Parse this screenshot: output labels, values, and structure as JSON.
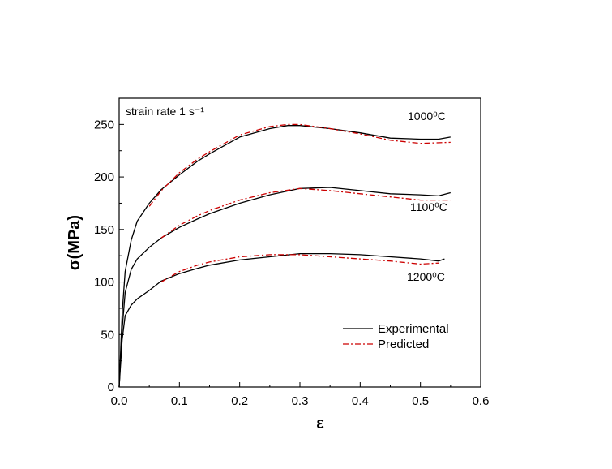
{
  "chart_data": {
    "type": "line",
    "xlabel": "ε",
    "ylabel": "σ(MPa)",
    "xlim": [
      0.0,
      0.6
    ],
    "ylim": [
      0,
      275
    ],
    "xticks": [
      "0.0",
      "0.1",
      "0.2",
      "0.3",
      "0.4",
      "0.5",
      "0.6"
    ],
    "yticks": [
      "0",
      "50",
      "100",
      "150",
      "200",
      "250"
    ],
    "grid": false,
    "legend_position": "bottom-right",
    "annotation": "strain rate 1 s⁻¹",
    "curve_labels": [
      {
        "text": "1000⁰C",
        "series": "1000"
      },
      {
        "text": "1100⁰C",
        "series": "1100"
      },
      {
        "text": "1200⁰C",
        "series": "1200"
      }
    ],
    "legend": [
      {
        "name": "Experimental",
        "color": "#000000",
        "style": "solid"
      },
      {
        "name": "Predicted",
        "color": "#cc0000",
        "style": "dash-dot"
      }
    ],
    "series": [
      {
        "name": "Experimental",
        "group": "1000",
        "color": "#000000",
        "x": [
          0.0,
          0.005,
          0.01,
          0.02,
          0.03,
          0.05,
          0.07,
          0.1,
          0.13,
          0.15,
          0.2,
          0.25,
          0.28,
          0.3,
          0.35,
          0.4,
          0.45,
          0.5,
          0.53,
          0.55
        ],
        "y": [
          0,
          70,
          110,
          140,
          158,
          175,
          188,
          202,
          215,
          222,
          238,
          246,
          249,
          249,
          246,
          242,
          237,
          236,
          236,
          238
        ]
      },
      {
        "name": "Predicted",
        "group": "1000",
        "color": "#cc0000",
        "x": [
          0.05,
          0.07,
          0.1,
          0.13,
          0.15,
          0.2,
          0.25,
          0.28,
          0.3,
          0.35,
          0.4,
          0.45,
          0.5,
          0.55
        ],
        "y": [
          172,
          187,
          204,
          217,
          224,
          240,
          248,
          250,
          250,
          246,
          241,
          235,
          232,
          233
        ]
      },
      {
        "name": "Experimental",
        "group": "1100",
        "color": "#000000",
        "x": [
          0.0,
          0.005,
          0.01,
          0.02,
          0.03,
          0.05,
          0.07,
          0.1,
          0.13,
          0.15,
          0.2,
          0.25,
          0.3,
          0.35,
          0.4,
          0.45,
          0.5,
          0.53,
          0.55
        ],
        "y": [
          0,
          55,
          90,
          112,
          122,
          133,
          142,
          152,
          160,
          165,
          175,
          183,
          189,
          190,
          187,
          184,
          183,
          182,
          185
        ]
      },
      {
        "name": "Predicted",
        "group": "1100",
        "color": "#cc0000",
        "x": [
          0.07,
          0.1,
          0.13,
          0.15,
          0.2,
          0.25,
          0.3,
          0.35,
          0.4,
          0.45,
          0.5,
          0.55
        ],
        "y": [
          142,
          154,
          163,
          168,
          178,
          185,
          189,
          187,
          184,
          181,
          178,
          178
        ]
      },
      {
        "name": "Experimental",
        "group": "1200",
        "color": "#000000",
        "x": [
          0.0,
          0.005,
          0.01,
          0.02,
          0.03,
          0.05,
          0.07,
          0.1,
          0.13,
          0.15,
          0.2,
          0.25,
          0.3,
          0.35,
          0.4,
          0.45,
          0.5,
          0.53,
          0.54
        ],
        "y": [
          0,
          45,
          68,
          78,
          84,
          92,
          101,
          108,
          113,
          116,
          121,
          124,
          127,
          127,
          126,
          124,
          122,
          120,
          122
        ]
      },
      {
        "name": "Predicted",
        "group": "1200",
        "color": "#cc0000",
        "x": [
          0.07,
          0.1,
          0.13,
          0.15,
          0.2,
          0.25,
          0.3,
          0.35,
          0.4,
          0.45,
          0.5,
          0.53
        ],
        "y": [
          100,
          110,
          116,
          119,
          124,
          126,
          126,
          124,
          122,
          120,
          117,
          118
        ]
      }
    ]
  }
}
